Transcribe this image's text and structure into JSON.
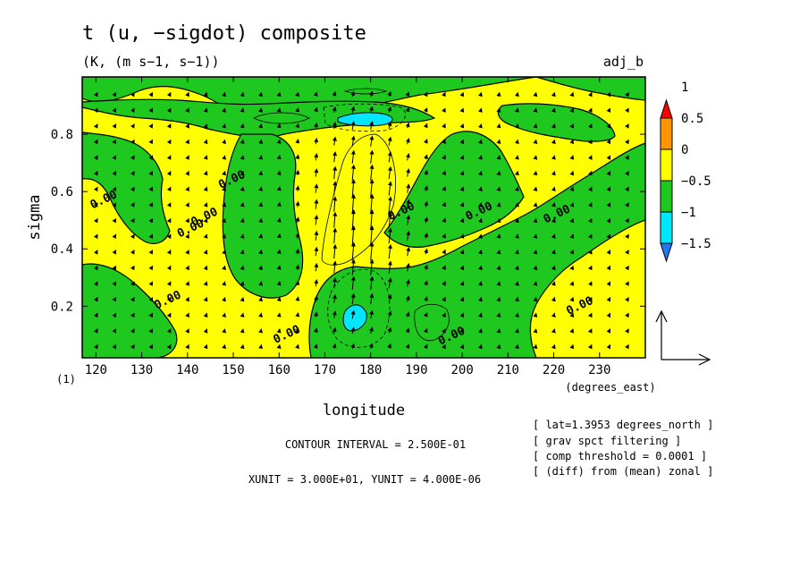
{
  "chart_data": {
    "type": "heatmap",
    "title": "t (u, −sigdot) composite",
    "subtitle": "(K, (m s−1, s−1))",
    "tag": "adj_b",
    "xlabel": "longitude",
    "x_unit_label": "(degrees_east)",
    "ylabel": "sigma",
    "y_unit_label": "(1)",
    "xlim": [
      117,
      240
    ],
    "ylim": [
      1.0,
      0.02
    ],
    "x_ticks": [
      120,
      130,
      140,
      150,
      160,
      170,
      180,
      190,
      200,
      210,
      220,
      230
    ],
    "x_tick_labels": [
      "120",
      "130",
      "140",
      "150",
      "160",
      "170",
      "180",
      "190",
      "200",
      "210",
      "220",
      "230"
    ],
    "y_ticks": [
      0.2,
      0.4,
      0.6,
      0.8
    ],
    "y_tick_labels": [
      "0.2",
      "0.4",
      "0.6",
      "0.8"
    ],
    "colorbar": {
      "levels": [
        -1.5,
        -1,
        -0.5,
        0,
        0.5,
        1
      ],
      "tick_labels": [
        "−1.5",
        "−1",
        "−0.5",
        "0",
        "0.5",
        "1"
      ],
      "colors": [
        "#1e78f0",
        "#00e6ff",
        "#1ec81e",
        "#ffff00",
        "#ff9600",
        "#ff0000"
      ]
    },
    "contour_labels": [
      {
        "text": "0.00",
        "lon": 136,
        "sigma": 0.21
      },
      {
        "text": "0.00",
        "lon": 141,
        "sigma": 0.46
      },
      {
        "text": "0.00",
        "lon": 162,
        "sigma": 0.09
      },
      {
        "text": "0.00",
        "lon": 198,
        "sigma": 0.085
      },
      {
        "text": "0.00",
        "lon": 226,
        "sigma": 0.19
      },
      {
        "text": "0.00",
        "lon": 122,
        "sigma": 0.56
      },
      {
        "text": "0.00",
        "lon": 144,
        "sigma": 0.5
      },
      {
        "text": "0.00",
        "lon": 150,
        "sigma": 0.63
      },
      {
        "text": "0.00",
        "lon": 187,
        "sigma": 0.52
      },
      {
        "text": "0.00",
        "lon": 204,
        "sigma": 0.52
      },
      {
        "text": "0.00",
        "lon": 221,
        "sigma": 0.51
      }
    ],
    "contour_interval": "CONTOUR INTERVAL = 2.500E-01",
    "vector_units": "XUNIT = 3.000E+01, YUNIT = 4.000E-06",
    "notes": [
      "[ lat=1.3953 degrees_north ]",
      "[ grav spct filtering ]",
      "[ comp threshold = 0.0001 ]",
      "[ (diff) from (mean) zonal ]"
    ]
  }
}
